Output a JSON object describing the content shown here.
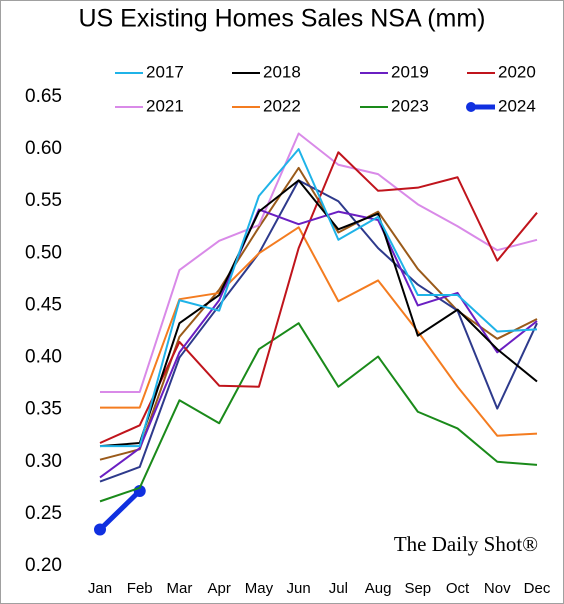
{
  "chart_data": {
    "type": "line",
    "title": "US Existing Homes Sales NSA (mm)",
    "categories": [
      "Jan",
      "Feb",
      "Mar",
      "Apr",
      "May",
      "Jun",
      "Jul",
      "Aug",
      "Sep",
      "Oct",
      "Nov",
      "Dec"
    ],
    "series": [
      {
        "name": "2017",
        "color": "#1fb3e8",
        "values": [
          0.315,
          0.315,
          0.455,
          0.445,
          0.555,
          0.6,
          0.513,
          0.535,
          0.46,
          0.46,
          0.425,
          0.427
        ]
      },
      {
        "name": "2018",
        "color": "#000000",
        "values": [
          0.315,
          0.318,
          0.433,
          0.46,
          0.54,
          0.57,
          0.523,
          0.538,
          0.421,
          0.446,
          0.408,
          0.377
        ]
      },
      {
        "name": "2019",
        "color": "#6a1fc2",
        "values": [
          0.285,
          0.313,
          0.405,
          0.455,
          0.542,
          0.528,
          0.54,
          0.532,
          0.45,
          0.462,
          0.405,
          0.435
        ]
      },
      {
        "name": "2020",
        "color": "#c0141c",
        "values": [
          0.318,
          0.335,
          0.415,
          0.373,
          0.372,
          0.505,
          0.597,
          0.56,
          0.563,
          0.573,
          0.493,
          0.539
        ]
      },
      {
        "name": "2021",
        "color": "#d98ae8",
        "values": [
          0.367,
          0.367,
          0.484,
          0.512,
          0.527,
          0.615,
          0.585,
          0.576,
          0.547,
          0.526,
          0.503,
          0.513
        ]
      },
      {
        "name": "2022",
        "color": "#f47c20",
        "values": [
          0.352,
          0.352,
          0.456,
          0.462,
          0.5,
          0.525,
          0.454,
          0.474,
          0.425,
          0.372,
          0.325,
          0.327
        ]
      },
      {
        "name": "2023",
        "color": "#1a8a1a",
        "values": [
          0.262,
          0.275,
          0.359,
          0.337,
          0.408,
          0.433,
          0.372,
          0.401,
          0.348,
          0.332,
          0.3,
          0.297
        ]
      },
      {
        "name": "2024",
        "color": "#1030e0",
        "values": [
          0.235,
          0.272,
          null,
          null,
          null,
          null,
          null,
          null,
          null,
          null,
          null,
          null
        ]
      },
      {
        "color": "#2e3a8c",
        "values": [
          0.281,
          0.295,
          0.4,
          0.45,
          0.5,
          0.57,
          0.55,
          0.505,
          0.47,
          0.445,
          0.351,
          0.433
        ]
      },
      {
        "color": "#9a5a1a",
        "values": [
          0.302,
          0.312,
          0.42,
          0.465,
          0.525,
          0.582,
          0.52,
          0.54,
          0.485,
          0.445,
          0.418,
          0.437
        ]
      }
    ],
    "ylim": [
      0.2,
      0.65
    ],
    "yticks": [
      {
        "value": 0.2,
        "label": "0.20"
      },
      0.25,
      {
        "value": 0.3,
        "label": "0.30"
      },
      0.35,
      {
        "value": 0.4,
        "label": "0.40"
      },
      0.45,
      {
        "value": 0.5,
        "label": "0.50"
      },
      0.55,
      {
        "value": 0.6,
        "label": "0.60"
      },
      0.65
    ],
    "grid": false,
    "watermark": "The Daily Shot®"
  }
}
